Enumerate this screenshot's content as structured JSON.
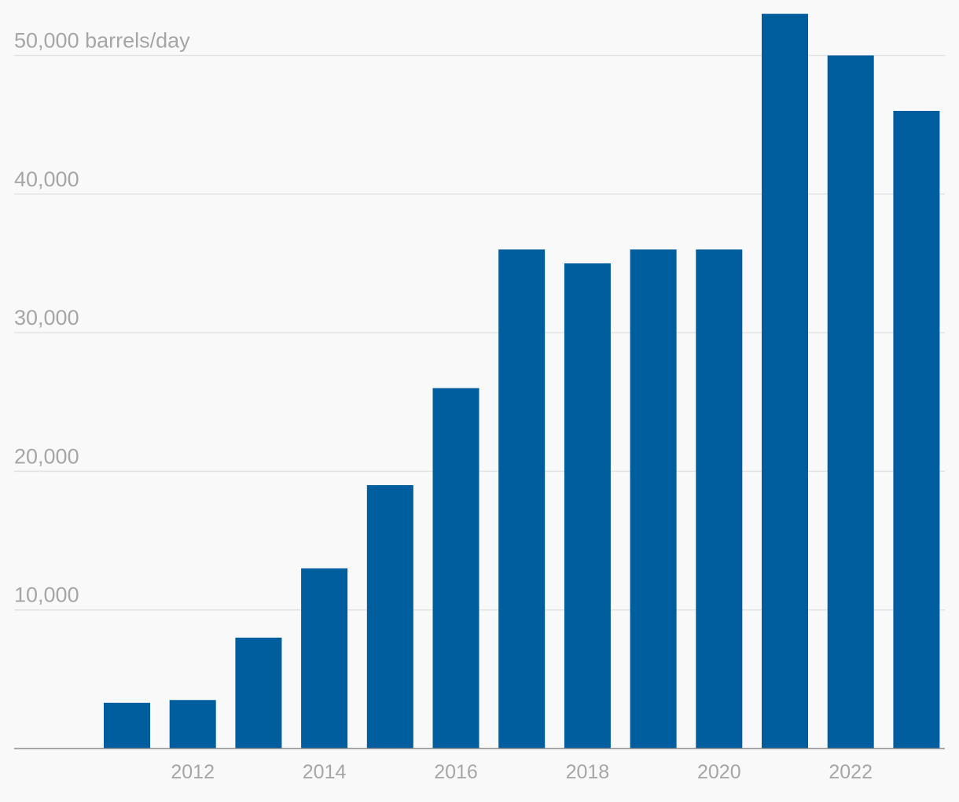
{
  "colors": {
    "bar": "#005e9e",
    "grid": "#e3e3e3",
    "label": "#a6a6a6",
    "background": "#f9f9f9"
  },
  "chart_data": {
    "type": "bar",
    "title": "",
    "xlabel": "",
    "ylabel": "barrels/day",
    "years": [
      2011,
      2012,
      2013,
      2014,
      2015,
      2016,
      2017,
      2018,
      2019,
      2020,
      2021,
      2022,
      2023
    ],
    "values": [
      3300,
      3500,
      8000,
      13000,
      19000,
      26000,
      36000,
      35000,
      36000,
      36000,
      53000,
      50000,
      46000
    ],
    "ylim": [
      0,
      53000
    ],
    "yticks": [
      10000,
      20000,
      30000,
      40000,
      50000
    ],
    "ytick_labels": [
      "10,000",
      "20,000",
      "30,000",
      "40,000",
      "50,000 barrels/day"
    ],
    "xtick_years": [
      2012,
      2014,
      2016,
      2018,
      2020,
      2022
    ],
    "xtick_labels": [
      "2012",
      "2014",
      "2016",
      "2018",
      "2020",
      "2022"
    ],
    "grid": true
  }
}
